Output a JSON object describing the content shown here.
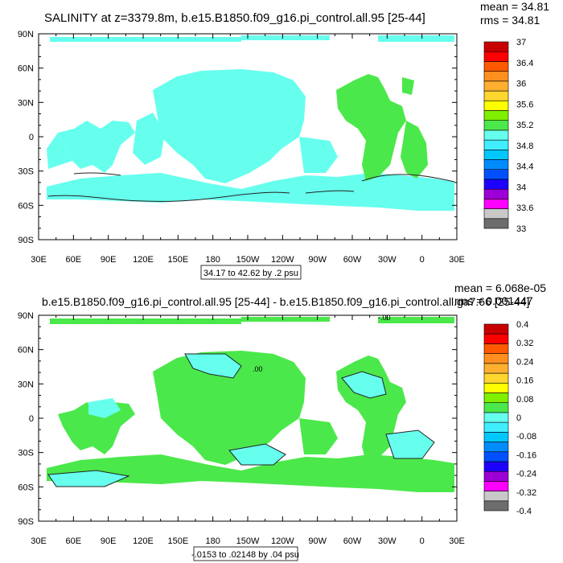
{
  "panels": [
    {
      "title": "SALINITY at z=3379.8m, b.e15.B1850.f09_g16.pi_control.all.95 [25-44]",
      "stats": [
        "mean = 34.81",
        "rms = 34.81"
      ],
      "range_note": "34.17 to 42.62 by .2 psu",
      "ocean_color": "#66ffee",
      "secondary_ocean_color": "#4be84b",
      "contour_labels": []
    },
    {
      "title": "b.e15.B1850.f09_g16.pi_control.all.95 [25-44] - b.e15.B1850.f09_g16.pi_control.all.ga7.66 [25-44]",
      "stats": [
        "mean = 6.068e-05",
        "rms = 0.001447"
      ],
      "range_note": "-.0153 to .02148 by .04 psu",
      "ocean_color": "#4be84b",
      "secondary_ocean_color": "#66ffee",
      "contour_labels": [
        "-.00",
        ".00"
      ]
    }
  ],
  "chart_data": [
    {
      "type": "heatmap",
      "variable": "SALINITY",
      "depth": "z=3379.8m",
      "x_ticks": [
        "30E",
        "60E",
        "90E",
        "120E",
        "150E",
        "180",
        "150W",
        "120W",
        "90W",
        "60W",
        "30W",
        "0",
        "30E"
      ],
      "y_ticks": [
        "90N",
        "60N",
        "30N",
        "0",
        "30S",
        "60S",
        "90S"
      ],
      "ylim": [
        -90,
        90
      ],
      "colorbar": {
        "colors": [
          "#6d6d6d",
          "#c8c8c8",
          "#ff00ff",
          "#9c00d6",
          "#1e00ff",
          "#0050ff",
          "#008cff",
          "#00c8ff",
          "#40eeff",
          "#66ffee",
          "#4be84b",
          "#7ff000",
          "#ffff00",
          "#ffd530",
          "#ffb030",
          "#ff9020",
          "#ff5a00",
          "#ff0000",
          "#c80000"
        ],
        "labels": [
          "33",
          "33.6",
          "34",
          "34.4",
          "34.8",
          "35.2",
          "35.6",
          "36",
          "36.4",
          "37"
        ]
      },
      "stats": {
        "mean": 34.81,
        "rms": 34.81
      },
      "contour_min": 34.17,
      "contour_max": 42.62,
      "contour_interval": 0.2
    },
    {
      "type": "heatmap",
      "variable": "SALINITY difference",
      "x_ticks": [
        "30E",
        "60E",
        "90E",
        "120E",
        "150E",
        "180",
        "150W",
        "120W",
        "90W",
        "60W",
        "30W",
        "0",
        "30E"
      ],
      "y_ticks": [
        "90N",
        "60N",
        "30N",
        "0",
        "30S",
        "60S",
        "90S"
      ],
      "ylim": [
        -90,
        90
      ],
      "colorbar": {
        "colors": [
          "#6d6d6d",
          "#c8c8c8",
          "#ff00ff",
          "#9c00d6",
          "#1e00ff",
          "#0050ff",
          "#008cff",
          "#00c8ff",
          "#40eeff",
          "#66ffee",
          "#4be84b",
          "#7ff000",
          "#ffff00",
          "#ffd530",
          "#ffb030",
          "#ff9020",
          "#ff5a00",
          "#ff0000",
          "#c80000"
        ],
        "labels": [
          "-0.4",
          "-0.32",
          "-0.24",
          "-0.16",
          "-0.08",
          "0",
          "0.08",
          "0.16",
          "0.24",
          "0.32",
          "0.4"
        ]
      },
      "stats": {
        "mean": 6.068e-05,
        "rms": 0.001447
      },
      "contour_min": -0.0153,
      "contour_max": 0.02148,
      "contour_interval": 0.04
    }
  ]
}
